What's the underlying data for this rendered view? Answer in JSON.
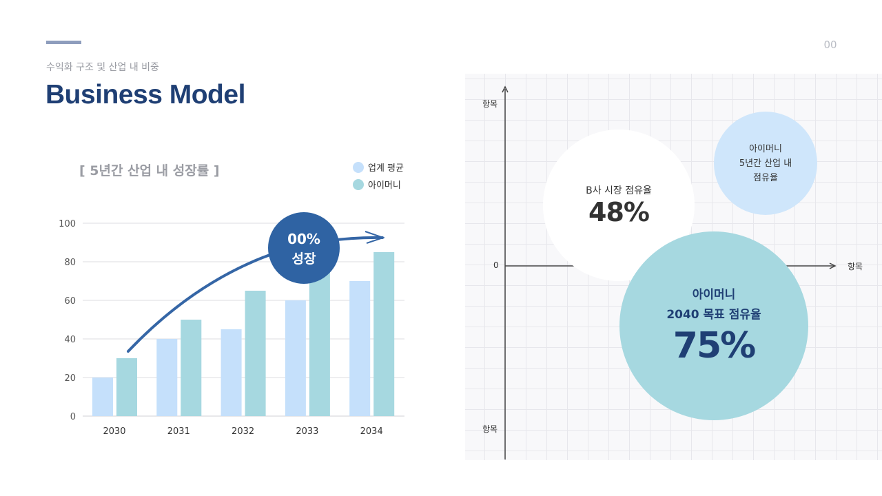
{
  "header": {
    "subtitle": "수익화 구조 및 산업 내 비중",
    "title": "Business Model",
    "page_number": "00"
  },
  "chart_data": {
    "type": "bar",
    "title": "[  5년간 산업 내 성장률  ]",
    "categories": [
      "2030",
      "2031",
      "2032",
      "2033",
      "2034"
    ],
    "series": [
      {
        "name": "업계 평균",
        "color": "#c5e0fb",
        "values": [
          20,
          40,
          45,
          60,
          70
        ]
      },
      {
        "name": "아이머니",
        "color": "#a6d8e0",
        "values": [
          30,
          50,
          65,
          75,
          85
        ]
      }
    ],
    "ylim": [
      0,
      100
    ],
    "yticks": [
      "0",
      "20",
      "40",
      "60",
      "80",
      "100"
    ],
    "grid": true,
    "legend": "top-right",
    "annotation": {
      "line1": "00%",
      "line2": "성장",
      "color": "#2f63a3"
    }
  },
  "positioning": {
    "y_axis_top_label": "항목",
    "y_axis_bottom_label": "항목",
    "origin_label": "0",
    "x_axis_label": "항목",
    "bubbles": [
      {
        "label": "B사 시장 점유율",
        "value": "48%",
        "color": "#ffffff"
      },
      {
        "label_lines": [
          "아이머니",
          "5년간 산업 내",
          "점유율"
        ],
        "color": "#cfe6fb"
      },
      {
        "label_lines": [
          "아이머니",
          "2040 목표 점유율"
        ],
        "value": "75%",
        "color": "#a6d8e0"
      }
    ]
  }
}
